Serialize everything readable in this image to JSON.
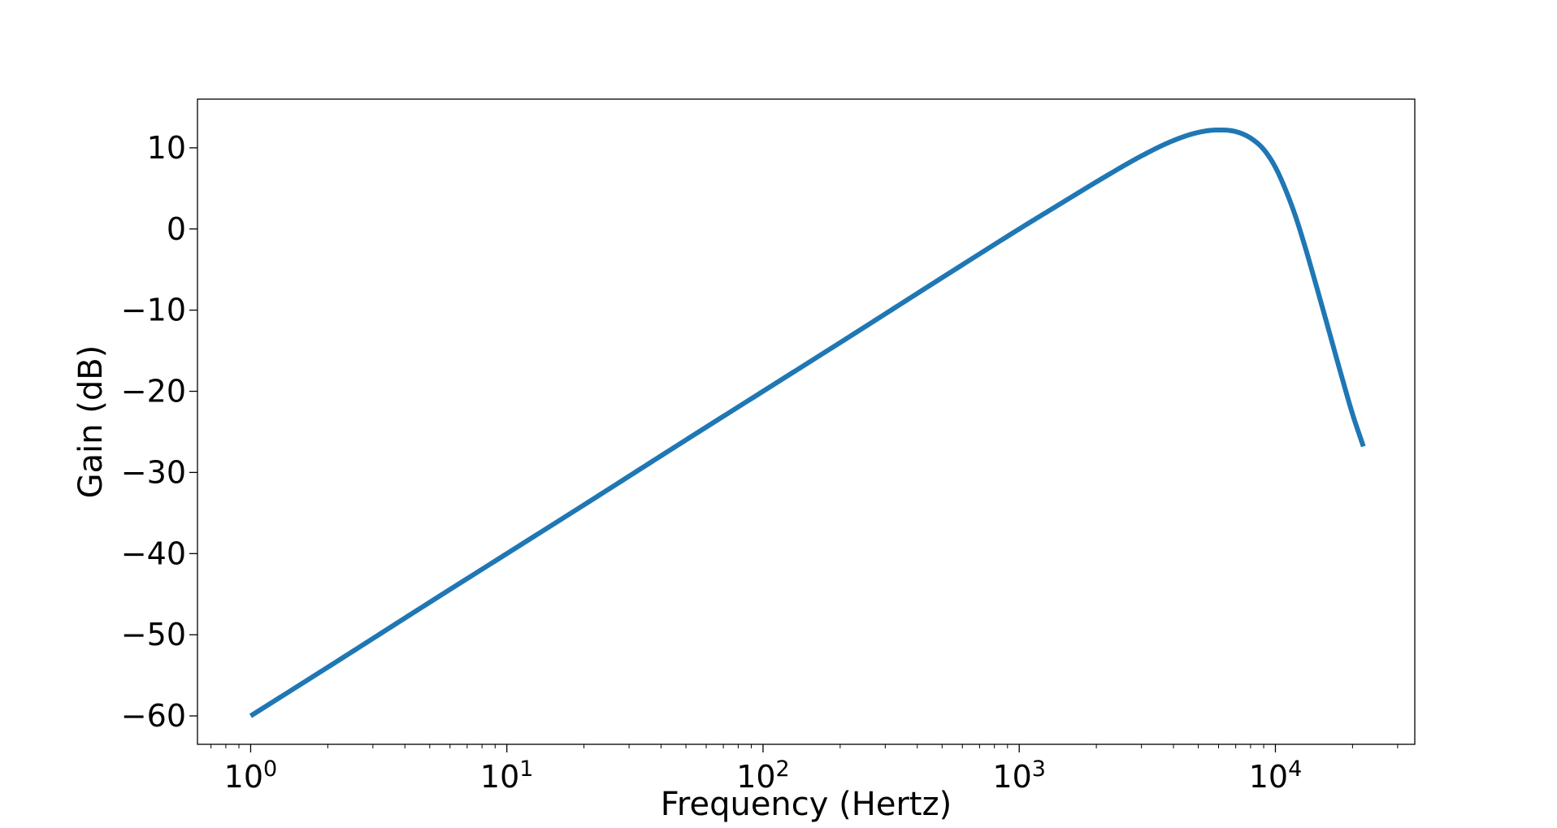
{
  "chart_data": {
    "type": "line",
    "title": "",
    "xlabel": "Frequency (Hertz)",
    "ylabel": "Gain (dB)",
    "x_scale": "log",
    "xlim": [
      0.62,
      35000
    ],
    "ylim": [
      -63.5,
      16
    ],
    "grid": false,
    "x_ticks": [
      {
        "value": 1,
        "base": "10",
        "exp": "0"
      },
      {
        "value": 10,
        "base": "10",
        "exp": "1"
      },
      {
        "value": 100,
        "base": "10",
        "exp": "2"
      },
      {
        "value": 1000,
        "base": "10",
        "exp": "3"
      },
      {
        "value": 10000,
        "base": "10",
        "exp": "4"
      }
    ],
    "y_ticks": [
      {
        "value": 10,
        "label": "10"
      },
      {
        "value": 0,
        "label": "0"
      },
      {
        "value": -10,
        "label": "−10"
      },
      {
        "value": -20,
        "label": "−20"
      },
      {
        "value": -30,
        "label": "−30"
      },
      {
        "value": -40,
        "label": "−40"
      },
      {
        "value": -50,
        "label": "−50"
      },
      {
        "value": -60,
        "label": "−60"
      }
    ],
    "series": [
      {
        "color": "#1f77b4",
        "x": [
          1,
          2,
          5,
          10,
          20,
          50,
          100,
          200,
          500,
          1000,
          1500,
          2000,
          3000,
          4000,
          5000,
          6000,
          7000,
          8000,
          9000,
          10000,
          11000,
          12000,
          13000,
          14000,
          16000,
          18000,
          20000,
          22050
        ],
        "y": [
          -60,
          -54,
          -46,
          -40,
          -34,
          -26,
          -20,
          -14,
          -6,
          0,
          3.4,
          5.8,
          9.0,
          10.9,
          11.9,
          12.2,
          12.0,
          11.2,
          9.8,
          7.6,
          4.7,
          1.5,
          -2.0,
          -5.5,
          -12.0,
          -17.8,
          -22.8,
          -26.8
        ]
      }
    ]
  }
}
